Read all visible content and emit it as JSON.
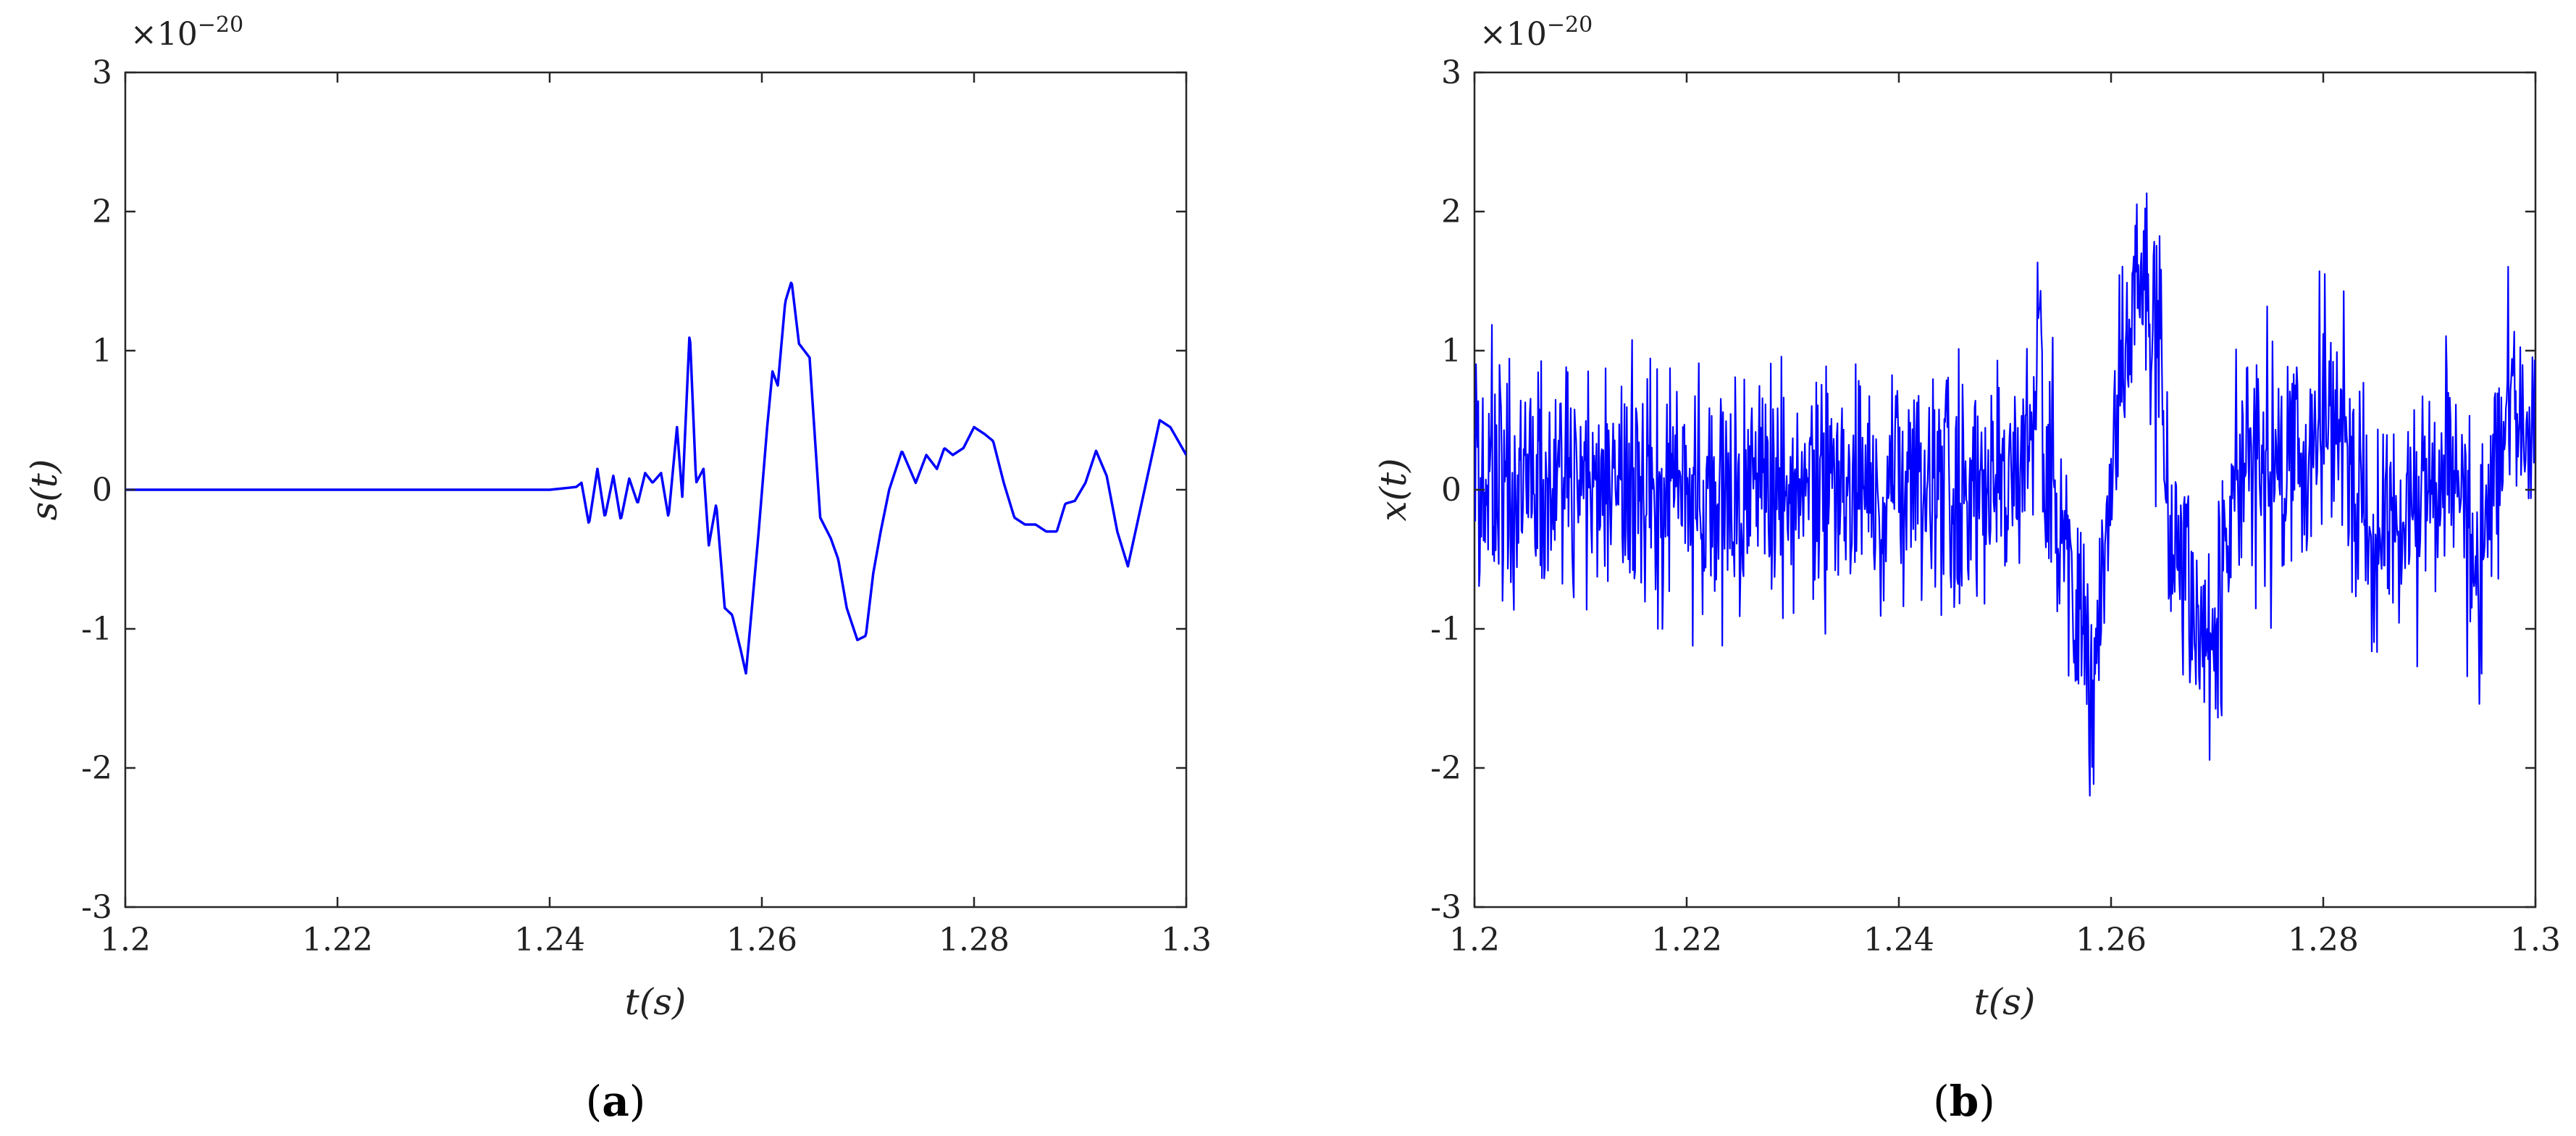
{
  "figure": {
    "panels": [
      {
        "letter": "a",
        "open": "(",
        "close": ")"
      },
      {
        "letter": "b",
        "open": "(",
        "close": ")"
      }
    ]
  },
  "chart_data": [
    {
      "type": "line",
      "panel": "(a)",
      "xlabel": "t(s)",
      "ylabel": "s(t)",
      "y_exponent": {
        "base": "×10",
        "power": "−20"
      },
      "xlim": [
        1.2,
        1.3
      ],
      "ylim": [
        -3,
        3
      ],
      "xticks": [
        1.2,
        1.22,
        1.24,
        1.26,
        1.28,
        1.3
      ],
      "xtick_labels": [
        "1.2",
        "1.22",
        "1.24",
        "1.26",
        "1.28",
        "1.3"
      ],
      "yticks": [
        -3,
        -2,
        -1,
        0,
        1,
        2,
        3
      ],
      "ytick_labels": [
        "-3",
        "-2",
        "-1",
        "0",
        "1",
        "2",
        "3"
      ],
      "grid": false,
      "line_color": "#0000ff",
      "series": [
        {
          "x": [
            1.2,
            1.24,
            1.2425,
            1.243,
            1.2437,
            1.2445,
            1.2452,
            1.246,
            1.2467,
            1.2475,
            1.2483,
            1.249,
            1.2497,
            1.2505,
            1.2512,
            1.252,
            1.2525,
            1.2532,
            1.2538,
            1.2545,
            1.255,
            1.2557,
            1.2565,
            1.2572,
            1.258,
            1.2585,
            1.259,
            1.2597,
            1.2605,
            1.261,
            1.2615,
            1.2622,
            1.2628,
            1.2635,
            1.2645,
            1.2655,
            1.2665,
            1.2672,
            1.268,
            1.269,
            1.2698,
            1.2705,
            1.2712,
            1.272,
            1.2732,
            1.2745,
            1.2755,
            1.2765,
            1.2772,
            1.278,
            1.279,
            1.28,
            1.281,
            1.2818,
            1.2828,
            1.2838,
            1.2848,
            1.2858,
            1.2868,
            1.2878,
            1.2886,
            1.2895,
            1.2905,
            1.2915,
            1.2925,
            1.2935,
            1.2945,
            1.2955,
            1.2965,
            1.2975,
            1.2985,
            1.3
          ],
          "y": [
            0,
            0,
            0.02,
            0.05,
            -0.25,
            0.15,
            -0.2,
            0.1,
            -0.22,
            0.08,
            -0.1,
            0.12,
            0.05,
            0.12,
            -0.2,
            0.45,
            -0.05,
            1.15,
            0.05,
            0.15,
            -0.4,
            -0.1,
            -0.85,
            -0.9,
            -1.15,
            -1.32,
            -0.9,
            -0.3,
            0.45,
            0.85,
            0.75,
            1.35,
            1.5,
            1.05,
            0.95,
            -0.2,
            -0.35,
            -0.5,
            -0.85,
            -1.08,
            -1.05,
            -0.6,
            -0.3,
            0.0,
            0.28,
            0.05,
            0.25,
            0.15,
            0.3,
            0.25,
            0.3,
            0.45,
            0.4,
            0.35,
            0.05,
            -0.2,
            -0.25,
            -0.25,
            -0.3,
            -0.3,
            -0.1,
            -0.08,
            0.05,
            0.28,
            0.1,
            -0.3,
            -0.55,
            -0.2,
            0.15,
            0.5,
            0.45,
            0.25
          ]
        }
      ]
    },
    {
      "type": "line",
      "panel": "(b)",
      "xlabel": "t(s)",
      "ylabel": "x(t)",
      "y_exponent": {
        "base": "×10",
        "power": "−20"
      },
      "xlim": [
        1.2,
        1.3
      ],
      "ylim": [
        -3,
        3
      ],
      "xticks": [
        1.2,
        1.22,
        1.24,
        1.26,
        1.28,
        1.3
      ],
      "xtick_labels": [
        "1.2",
        "1.22",
        "1.24",
        "1.26",
        "1.28",
        "1.3"
      ],
      "yticks": [
        -3,
        -2,
        -1,
        0,
        1,
        2,
        3
      ],
      "ytick_labels": [
        "-3",
        "-2",
        "-1",
        "0",
        "1",
        "2",
        "3"
      ],
      "grid": false,
      "line_color": "#0000ff",
      "noise": {
        "samples": 1400,
        "std": 0.38,
        "y_range_observed": [
          -2.2,
          2.25
        ]
      },
      "series": [
        {
          "x": [
            1.2,
            1.24,
            1.2425,
            1.243,
            1.2437,
            1.2445,
            1.2452,
            1.246,
            1.2467,
            1.2475,
            1.2483,
            1.249,
            1.2497,
            1.2505,
            1.2512,
            1.252,
            1.2525,
            1.2532,
            1.2538,
            1.2545,
            1.255,
            1.2557,
            1.2565,
            1.2572,
            1.258,
            1.2585,
            1.259,
            1.2597,
            1.2605,
            1.261,
            1.2615,
            1.2622,
            1.2628,
            1.2635,
            1.2645,
            1.2655,
            1.2665,
            1.2672,
            1.268,
            1.269,
            1.2698,
            1.2705,
            1.2712,
            1.272,
            1.2732,
            1.2745,
            1.2755,
            1.2765,
            1.2772,
            1.278,
            1.279,
            1.28,
            1.281,
            1.2818,
            1.2828,
            1.2838,
            1.2848,
            1.2858,
            1.2868,
            1.2878,
            1.2886,
            1.2895,
            1.2905,
            1.2915,
            1.2925,
            1.2935,
            1.2945,
            1.2955,
            1.2965,
            1.2975,
            1.2985,
            1.3
          ],
          "y": [
            0,
            0,
            0.02,
            0.05,
            -0.25,
            0.15,
            -0.2,
            0.1,
            -0.22,
            0.08,
            -0.1,
            0.12,
            0.05,
            0.12,
            -0.2,
            0.45,
            -0.05,
            1.15,
            0.05,
            0.15,
            -0.4,
            -0.1,
            -0.85,
            -0.9,
            -1.15,
            -1.32,
            -0.9,
            -0.3,
            0.45,
            0.85,
            0.75,
            1.35,
            1.5,
            1.05,
            0.95,
            -0.2,
            -0.35,
            -0.5,
            -0.85,
            -1.08,
            -1.05,
            -0.6,
            -0.3,
            0.0,
            0.28,
            0.05,
            0.25,
            0.15,
            0.3,
            0.25,
            0.3,
            0.45,
            0.4,
            0.35,
            0.05,
            -0.2,
            -0.25,
            -0.25,
            -0.3,
            -0.3,
            -0.1,
            -0.08,
            0.05,
            0.28,
            0.1,
            -0.3,
            -0.55,
            -0.2,
            0.15,
            0.5,
            0.45,
            0.25
          ]
        }
      ]
    }
  ]
}
